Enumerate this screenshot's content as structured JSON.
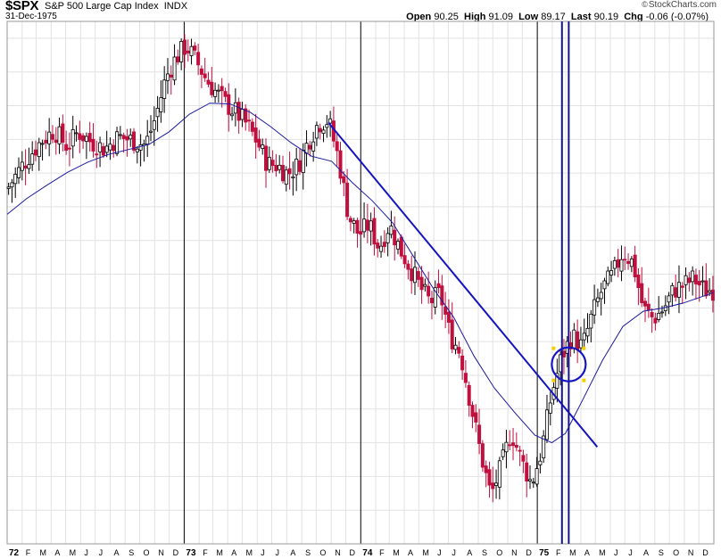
{
  "header": {
    "symbol": "$SPX",
    "name": "S&P 500 Large Cap Index",
    "exchange": "INDX",
    "date": "31-Dec-1975",
    "watermark": "StockCharts.com",
    "open_label": "Open",
    "open": "90.25",
    "high_label": "High",
    "high": "91.09",
    "low_label": "Low",
    "low": "89.17",
    "last_label": "Last",
    "last": "90.19",
    "chg_label": "Chg",
    "chg": "-0.06 (-0.07%)"
  },
  "colors": {
    "up": "#000000",
    "down": "#c0103f",
    "ma": "#1a1a9e",
    "annotation": "#1515c0",
    "grid": "#e2e2e2",
    "handle": "#f0d000"
  },
  "chart_data": {
    "type": "candlestick",
    "title": "",
    "xlabel": "",
    "ylabel": "",
    "ylim": [
      60,
      122
    ],
    "grid": true,
    "x_axis_labels": [
      "72",
      "F",
      "M",
      "A",
      "M",
      "J",
      "J",
      "A",
      "S",
      "O",
      "N",
      "D",
      "73",
      "F",
      "M",
      "A",
      "M",
      "J",
      "J",
      "A",
      "S",
      "O",
      "N",
      "D",
      "74",
      "F",
      "M",
      "A",
      "M",
      "J",
      "J",
      "A",
      "S",
      "O",
      "N",
      "D",
      "75",
      "F",
      "M",
      "A",
      "M",
      "J",
      "J",
      "A",
      "S",
      "O",
      "N",
      "D"
    ],
    "series": [
      {
        "kind": "weekly_close_approx",
        "points": [
          [
            "1972-01-01",
            102.1
          ],
          [
            "1972-01-21",
            103.9
          ],
          [
            "1972-02-11",
            105.7
          ],
          [
            "1972-03-10",
            107.7
          ],
          [
            "1972-04-07",
            109.1
          ],
          [
            "1972-05-05",
            107.1
          ],
          [
            "1972-05-26",
            108.9
          ],
          [
            "1972-06-23",
            107.7
          ],
          [
            "1972-07-21",
            106.9
          ],
          [
            "1972-08-18",
            108.3
          ],
          [
            "1972-09-15",
            107.9
          ],
          [
            "1972-10-13",
            107.3
          ],
          [
            "1972-11-03",
            110.7
          ],
          [
            "1972-11-24",
            115.3
          ],
          [
            "1972-12-15",
            117.7
          ],
          [
            "1973-01-05",
            119.1
          ],
          [
            "1973-01-26",
            117.3
          ],
          [
            "1973-02-16",
            115.1
          ],
          [
            "1973-03-09",
            113.5
          ],
          [
            "1973-03-30",
            112.1
          ],
          [
            "1973-04-20",
            111.1
          ],
          [
            "1973-05-11",
            109.7
          ],
          [
            "1973-06-01",
            107.7
          ],
          [
            "1973-06-22",
            105.1
          ],
          [
            "1973-07-13",
            104.9
          ],
          [
            "1973-08-03",
            103.9
          ],
          [
            "1973-08-24",
            104.9
          ],
          [
            "1973-09-14",
            107.7
          ],
          [
            "1973-10-05",
            109.9
          ],
          [
            "1973-10-26",
            110.3
          ],
          [
            "1973-11-16",
            105.7
          ],
          [
            "1973-12-07",
            98.9
          ],
          [
            "1973-12-28",
            96.7
          ],
          [
            "1974-01-18",
            97.9
          ],
          [
            "1974-02-08",
            95.1
          ],
          [
            "1974-03-01",
            97.9
          ],
          [
            "1974-03-22",
            95.1
          ],
          [
            "1974-04-12",
            92.9
          ],
          [
            "1974-05-03",
            90.5
          ],
          [
            "1974-05-24",
            88.7
          ],
          [
            "1974-06-14",
            89.7
          ],
          [
            "1974-07-05",
            84.7
          ],
          [
            "1974-07-26",
            82.7
          ],
          [
            "1974-08-16",
            76.7
          ],
          [
            "1974-09-06",
            70.7
          ],
          [
            "1974-09-27",
            65.7
          ],
          [
            "1974-10-18",
            69.1
          ],
          [
            "1974-11-08",
            73.3
          ],
          [
            "1974-11-29",
            69.9
          ],
          [
            "1974-12-20",
            67.1
          ],
          [
            "1975-01-10",
            71.1
          ],
          [
            "1975-01-31",
            77.9
          ],
          [
            "1975-02-21",
            82.3
          ],
          [
            "1975-03-14",
            84.7
          ],
          [
            "1975-04-04",
            83.3
          ],
          [
            "1975-04-25",
            87.3
          ],
          [
            "1975-05-16",
            90.3
          ],
          [
            "1975-06-06",
            91.9
          ],
          [
            "1975-06-27",
            94.7
          ],
          [
            "1975-07-18",
            93.3
          ],
          [
            "1975-08-08",
            87.9
          ],
          [
            "1975-08-29",
            86.7
          ],
          [
            "1975-09-19",
            87.9
          ],
          [
            "1975-10-10",
            90.1
          ],
          [
            "1975-10-31",
            90.7
          ],
          [
            "1975-11-21",
            91.5
          ],
          [
            "1975-12-12",
            90.1
          ],
          [
            "1975-12-31",
            90.19
          ]
        ]
      },
      {
        "kind": "moving_average",
        "points": [
          [
            "1972-01-01",
            99.1
          ],
          [
            "1972-02-11",
            101.0
          ],
          [
            "1972-03-24",
            102.6
          ],
          [
            "1972-05-05",
            104.1
          ],
          [
            "1972-06-16",
            105.3
          ],
          [
            "1972-07-28",
            106.2
          ],
          [
            "1972-09-08",
            106.8
          ],
          [
            "1972-10-20",
            107.4
          ],
          [
            "1972-12-01",
            108.9
          ],
          [
            "1973-01-12",
            111.0
          ],
          [
            "1973-02-23",
            112.3
          ],
          [
            "1973-04-06",
            112.2
          ],
          [
            "1973-05-18",
            111.2
          ],
          [
            "1973-06-29",
            109.5
          ],
          [
            "1973-08-10",
            107.6
          ],
          [
            "1973-09-21",
            106.0
          ],
          [
            "1973-11-02",
            105.4
          ],
          [
            "1973-12-14",
            102.9
          ],
          [
            "1974-01-25",
            100.7
          ],
          [
            "1974-03-08",
            98.1
          ],
          [
            "1974-04-19",
            94.2
          ],
          [
            "1974-05-31",
            90.3
          ],
          [
            "1974-07-12",
            86.9
          ],
          [
            "1974-08-23",
            82.3
          ],
          [
            "1974-10-04",
            78.5
          ],
          [
            "1974-11-15",
            75.6
          ],
          [
            "1974-12-27",
            72.9
          ],
          [
            "1975-01-31",
            72.0
          ],
          [
            "1975-02-28",
            73.1
          ],
          [
            "1975-04-04",
            77.0
          ],
          [
            "1975-05-16",
            81.8
          ],
          [
            "1975-06-27",
            85.8
          ],
          [
            "1975-08-08",
            87.6
          ],
          [
            "1975-09-19",
            88.0
          ],
          [
            "1975-10-31",
            88.6
          ],
          [
            "1975-12-31",
            89.8
          ]
        ]
      }
    ],
    "annotations": [
      {
        "type": "trendline",
        "from": [
          "1973-10-26",
          110.0
        ],
        "to": [
          "1975-05-05",
          71.5
        ]
      },
      {
        "type": "vertical_line",
        "at": "1975-02-21"
      },
      {
        "type": "vertical_line",
        "at": "1975-03-07"
      },
      {
        "type": "circle",
        "center": [
          "1975-03-07",
          81.3
        ]
      }
    ]
  }
}
